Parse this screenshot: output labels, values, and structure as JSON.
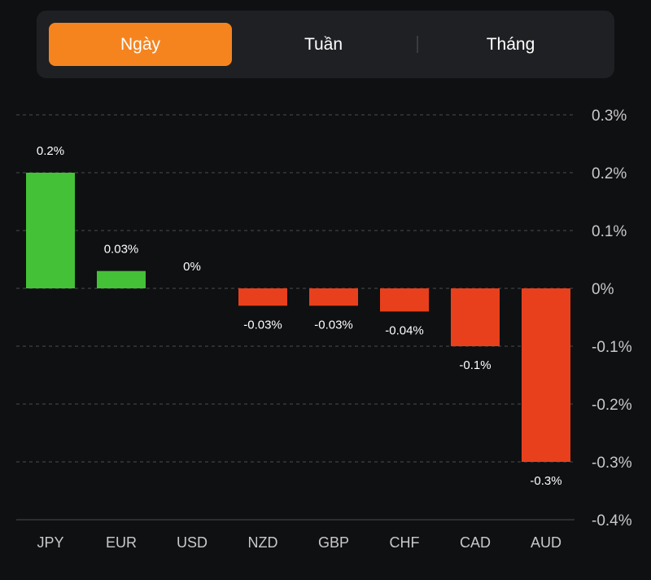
{
  "tabs": [
    {
      "label": "Ngày",
      "active": true
    },
    {
      "label": "Tuần",
      "active": false
    },
    {
      "label": "Tháng",
      "active": false
    }
  ],
  "colors": {
    "active_tab": "#f5841f",
    "positive": "#44c136",
    "negative": "#e8401c",
    "grid": "#4a4b4f",
    "text": "#ffffff",
    "axis_text": "#c9c9cc"
  },
  "chart_data": {
    "type": "bar",
    "categories": [
      "JPY",
      "EUR",
      "USD",
      "NZD",
      "GBP",
      "CHF",
      "CAD",
      "AUD"
    ],
    "values": [
      0.2,
      0.03,
      0,
      -0.03,
      -0.03,
      -0.04,
      -0.1,
      -0.3
    ],
    "data_labels": [
      "0.2%",
      "0.03%",
      "0%",
      "-0.03%",
      "-0.03%",
      "-0.04%",
      "-0.1%",
      "-0.3%"
    ],
    "yticks": [
      0.3,
      0.2,
      0.1,
      0,
      -0.1,
      -0.2,
      -0.3,
      -0.4
    ],
    "ytick_labels": [
      "0.3%",
      "0.2%",
      "0.1%",
      "0%",
      "-0.1%",
      "-0.2%",
      "-0.3%",
      "-0.4%"
    ],
    "ylim": [
      -0.4,
      0.3
    ],
    "y_axis_position": "right",
    "grid": true
  }
}
